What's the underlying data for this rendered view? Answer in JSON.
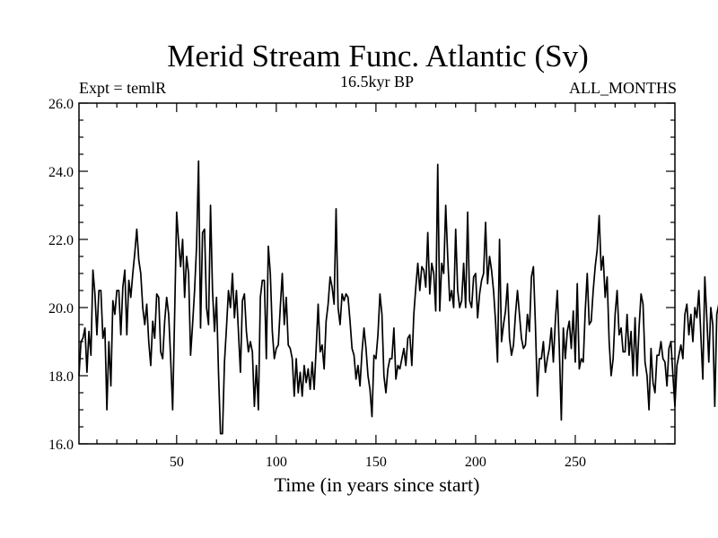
{
  "chart_data": {
    "type": "line",
    "title": "Merid Stream Func. Atlantic (Sv)",
    "subtitle_left": "Expt = temlR",
    "subtitle_center": "16.5kyr BP",
    "subtitle_right": "ALL_MONTHS",
    "xlabel": "Time (in years since start)",
    "ylabel": "",
    "xlim": [
      1,
      300
    ],
    "ylim": [
      16.0,
      26.0
    ],
    "x_ticks": [
      50,
      100,
      150,
      200,
      250
    ],
    "y_ticks": [
      "16.0",
      "18.0",
      "20.0",
      "22.0",
      "24.0",
      "26.0"
    ],
    "series": [
      {
        "name": "Merid Stream Func. Atlantic",
        "color": "#000000",
        "x_start": 1,
        "x_step": 1,
        "values": [
          18.0,
          19.0,
          19.1,
          19.4,
          18.1,
          19.3,
          18.6,
          21.1,
          20.4,
          19.2,
          20.5,
          20.5,
          19.1,
          19.4,
          17.0,
          19.0,
          17.7,
          20.2,
          19.8,
          20.5,
          20.5,
          19.2,
          20.6,
          21.1,
          19.2,
          20.8,
          20.3,
          21.0,
          21.6,
          22.3,
          21.4,
          21.0,
          20.0,
          19.5,
          20.1,
          19.0,
          18.3,
          19.6,
          19.1,
          20.4,
          20.3,
          18.7,
          18.5,
          19.6,
          20.3,
          19.8,
          18.5,
          17.0,
          19.8,
          22.8,
          21.9,
          21.2,
          22.0,
          20.3,
          21.5,
          21.0,
          18.6,
          19.5,
          20.5,
          21.8,
          24.3,
          19.4,
          22.2,
          22.3,
          20.0,
          19.5,
          23.0,
          20.5,
          19.3,
          20.3,
          18.1,
          16.3,
          16.3,
          18.4,
          19.4,
          20.5,
          20.0,
          21.0,
          19.7,
          20.5,
          19.3,
          18.1,
          20.2,
          20.4,
          19.3,
          18.7,
          19.0,
          18.7,
          17.1,
          18.3,
          17.0,
          20.3,
          20.8,
          20.8,
          18.5,
          21.8,
          21.0,
          19.3,
          18.5,
          18.8,
          18.9,
          20.0,
          21.0,
          19.5,
          20.3,
          18.9,
          18.8,
          18.5,
          17.4,
          18.5,
          17.5,
          18.1,
          17.4,
          18.3,
          17.8,
          18.2,
          17.6,
          18.4,
          17.6,
          18.8,
          20.1,
          18.7,
          18.9,
          18.2,
          19.6,
          20.1,
          20.9,
          20.6,
          20.1,
          22.9,
          20.0,
          19.5,
          20.4,
          20.2,
          20.4,
          20.3,
          19.6,
          18.8,
          18.6,
          17.9,
          18.3,
          17.7,
          18.7,
          19.4,
          18.8,
          18.0,
          17.6,
          16.8,
          18.6,
          18.5,
          19.2,
          20.4,
          19.8,
          18.0,
          17.5,
          18.2,
          18.5,
          18.5,
          19.4,
          17.9,
          18.3,
          18.2,
          18.5,
          18.8,
          18.3,
          19.1,
          19.2,
          18.3,
          19.8,
          20.6,
          21.3,
          20.5,
          21.2,
          21.1,
          20.6,
          22.2,
          20.4,
          21.3,
          21.0,
          19.9,
          24.2,
          19.9,
          21.3,
          21.0,
          23.0,
          21.5,
          20.2,
          20.5,
          20.0,
          22.3,
          20.5,
          20.0,
          20.2,
          21.3,
          20.0,
          22.8,
          20.2,
          20.0,
          20.9,
          21.0,
          19.7,
          20.4,
          20.8,
          21.0,
          22.5,
          20.7,
          21.5,
          21.1,
          20.5,
          19.6,
          18.4,
          22.0,
          19.0,
          19.5,
          19.9,
          20.7,
          19.1,
          18.6,
          18.9,
          19.8,
          20.5,
          19.8,
          19.1,
          18.8,
          18.9,
          19.8,
          19.3,
          20.9,
          21.2,
          19.5,
          17.4,
          18.5,
          18.5,
          19.0,
          18.1,
          18.5,
          18.8,
          19.4,
          18.4,
          19.6,
          20.5,
          18.8,
          16.7,
          19.4,
          18.5,
          19.3,
          19.6,
          18.8,
          19.9,
          18.4,
          20.7,
          18.2,
          18.5,
          18.4,
          19.9,
          21.0,
          19.5,
          19.6,
          20.5,
          21.2,
          21.7,
          22.7,
          21.1,
          21.5,
          20.3,
          20.9,
          19.0,
          18.0,
          18.5,
          19.8,
          20.5,
          19.2,
          19.4,
          18.7,
          18.7,
          19.8,
          18.6,
          19.3,
          18.0,
          19.7,
          18.0,
          19.4,
          20.4,
          20.1,
          18.4,
          18.0,
          17.0,
          18.8,
          17.8,
          17.5,
          18.6,
          18.6,
          19.0,
          18.5,
          18.4,
          17.7,
          18.8,
          19.0,
          18.0,
          17.1,
          18.3,
          18.6,
          18.9,
          18.5,
          19.8,
          20.1,
          19.2,
          19.8,
          19.0,
          20.0,
          19.7,
          20.5,
          19.2,
          17.9,
          20.9,
          19.7,
          18.4,
          20.0,
          19.5,
          17.1,
          19.8,
          20.1,
          21.9
        ]
      }
    ]
  }
}
